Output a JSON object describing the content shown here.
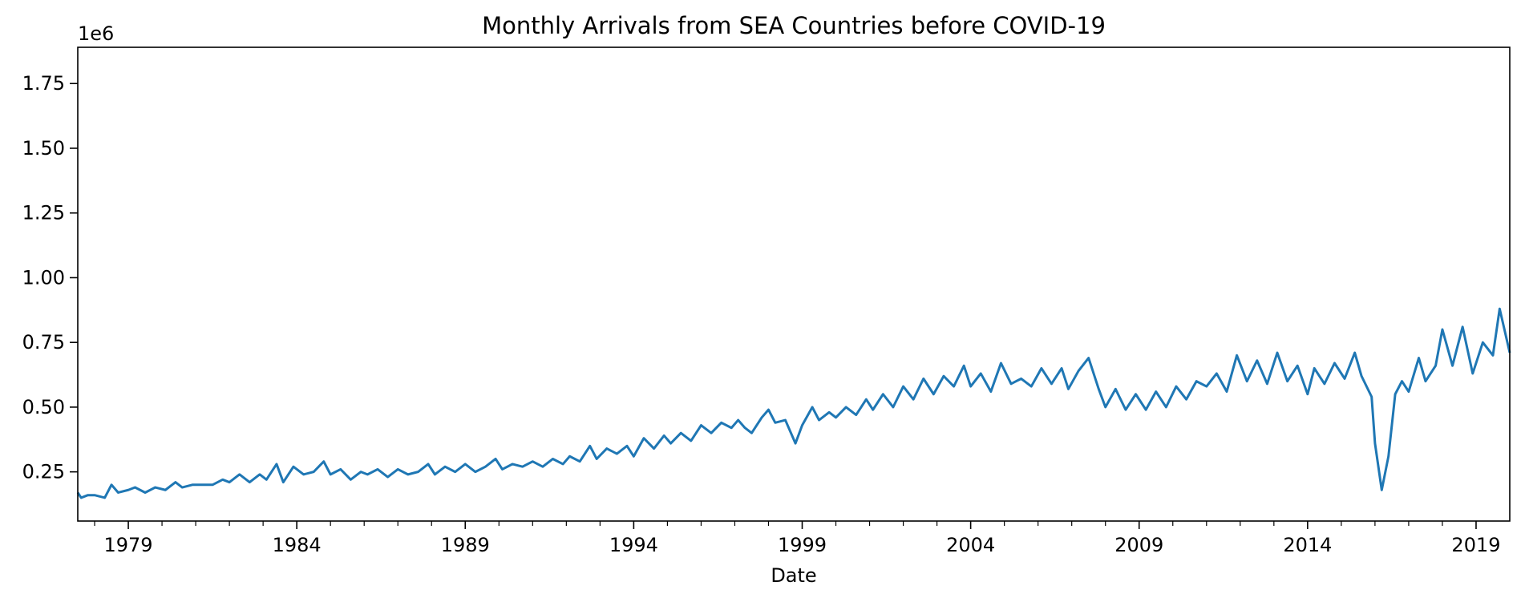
{
  "chart_data": {
    "type": "line",
    "title": "Monthly Arrivals from SEA Countries before COVID-19",
    "xlabel": "Date",
    "ylabel": "",
    "y_offset_label": "1e6",
    "xlim": [
      1977.5,
      2020.0
    ],
    "ylim": [
      0.06,
      1.89
    ],
    "x_ticks": [
      1979,
      1984,
      1989,
      1994,
      1999,
      2004,
      2009,
      2014,
      2019
    ],
    "x_tick_labels": [
      "1979",
      "1984",
      "1989",
      "1994",
      "1999",
      "2004",
      "2009",
      "2014",
      "2019"
    ],
    "y_ticks": [
      0.25,
      0.5,
      0.75,
      1.0,
      1.25,
      1.5,
      1.75
    ],
    "y_tick_labels": [
      "0.25",
      "0.50",
      "0.75",
      "1.00",
      "1.25",
      "1.50",
      "1.75"
    ],
    "color": "#1f77b4",
    "series": [
      {
        "name": "Arrivals",
        "points": [
          [
            1977.5,
            0.17
          ],
          [
            1977.6,
            0.15
          ],
          [
            1977.8,
            0.16
          ],
          [
            1978.0,
            0.16
          ],
          [
            1978.3,
            0.15
          ],
          [
            1978.5,
            0.2
          ],
          [
            1978.7,
            0.17
          ],
          [
            1979.0,
            0.18
          ],
          [
            1979.2,
            0.19
          ],
          [
            1979.5,
            0.17
          ],
          [
            1979.8,
            0.19
          ],
          [
            1980.1,
            0.18
          ],
          [
            1980.4,
            0.21
          ],
          [
            1980.6,
            0.19
          ],
          [
            1980.9,
            0.2
          ],
          [
            1981.2,
            0.2
          ],
          [
            1981.5,
            0.2
          ],
          [
            1981.8,
            0.22
          ],
          [
            1982.0,
            0.21
          ],
          [
            1982.3,
            0.24
          ],
          [
            1982.6,
            0.21
          ],
          [
            1982.9,
            0.24
          ],
          [
            1983.1,
            0.22
          ],
          [
            1983.4,
            0.28
          ],
          [
            1983.6,
            0.21
          ],
          [
            1983.9,
            0.27
          ],
          [
            1984.2,
            0.24
          ],
          [
            1984.5,
            0.25
          ],
          [
            1984.8,
            0.29
          ],
          [
            1985.0,
            0.24
          ],
          [
            1985.3,
            0.26
          ],
          [
            1985.6,
            0.22
          ],
          [
            1985.9,
            0.25
          ],
          [
            1986.1,
            0.24
          ],
          [
            1986.4,
            0.26
          ],
          [
            1986.7,
            0.23
          ],
          [
            1987.0,
            0.26
          ],
          [
            1987.3,
            0.24
          ],
          [
            1987.6,
            0.25
          ],
          [
            1987.9,
            0.28
          ],
          [
            1988.1,
            0.24
          ],
          [
            1988.4,
            0.27
          ],
          [
            1988.7,
            0.25
          ],
          [
            1989.0,
            0.28
          ],
          [
            1989.3,
            0.25
          ],
          [
            1989.6,
            0.27
          ],
          [
            1989.9,
            0.3
          ],
          [
            1990.1,
            0.26
          ],
          [
            1990.4,
            0.28
          ],
          [
            1990.7,
            0.27
          ],
          [
            1991.0,
            0.29
          ],
          [
            1991.3,
            0.27
          ],
          [
            1991.6,
            0.3
          ],
          [
            1991.9,
            0.28
          ],
          [
            1992.1,
            0.31
          ],
          [
            1992.4,
            0.29
          ],
          [
            1992.7,
            0.35
          ],
          [
            1992.9,
            0.3
          ],
          [
            1993.2,
            0.34
          ],
          [
            1993.5,
            0.32
          ],
          [
            1993.8,
            0.35
          ],
          [
            1994.0,
            0.31
          ],
          [
            1994.3,
            0.38
          ],
          [
            1994.6,
            0.34
          ],
          [
            1994.9,
            0.39
          ],
          [
            1995.1,
            0.36
          ],
          [
            1995.4,
            0.4
          ],
          [
            1995.7,
            0.37
          ],
          [
            1996.0,
            0.43
          ],
          [
            1996.3,
            0.4
          ],
          [
            1996.6,
            0.44
          ],
          [
            1996.9,
            0.42
          ],
          [
            1997.1,
            0.45
          ],
          [
            1997.3,
            0.42
          ],
          [
            1997.5,
            0.4
          ],
          [
            1997.8,
            0.46
          ],
          [
            1998.0,
            0.49
          ],
          [
            1998.2,
            0.44
          ],
          [
            1998.5,
            0.45
          ],
          [
            1998.8,
            0.36
          ],
          [
            1999.0,
            0.43
          ],
          [
            1999.3,
            0.5
          ],
          [
            1999.5,
            0.45
          ],
          [
            1999.8,
            0.48
          ],
          [
            2000.0,
            0.46
          ],
          [
            2000.3,
            0.5
          ],
          [
            2000.6,
            0.47
          ],
          [
            2000.9,
            0.53
          ],
          [
            2001.1,
            0.49
          ],
          [
            2001.4,
            0.55
          ],
          [
            2001.7,
            0.5
          ],
          [
            2002.0,
            0.58
          ],
          [
            2002.3,
            0.53
          ],
          [
            2002.6,
            0.61
          ],
          [
            2002.9,
            0.55
          ],
          [
            2003.2,
            0.62
          ],
          [
            2003.5,
            0.58
          ],
          [
            2003.8,
            0.66
          ],
          [
            2004.0,
            0.58
          ],
          [
            2004.3,
            0.63
          ],
          [
            2004.6,
            0.56
          ],
          [
            2004.9,
            0.67
          ],
          [
            2005.2,
            0.59
          ],
          [
            2005.5,
            0.61
          ],
          [
            2005.8,
            0.58
          ],
          [
            2006.1,
            0.65
          ],
          [
            2006.4,
            0.59
          ],
          [
            2006.7,
            0.65
          ],
          [
            2006.9,
            0.57
          ],
          [
            2007.2,
            0.64
          ],
          [
            2007.5,
            0.69
          ],
          [
            2007.8,
            0.57
          ],
          [
            2008.0,
            0.5
          ],
          [
            2008.3,
            0.57
          ],
          [
            2008.6,
            0.49
          ],
          [
            2008.9,
            0.55
          ],
          [
            2009.2,
            0.49
          ],
          [
            2009.5,
            0.56
          ],
          [
            2009.8,
            0.5
          ],
          [
            2010.1,
            0.58
          ],
          [
            2010.4,
            0.53
          ],
          [
            2010.7,
            0.6
          ],
          [
            2011.0,
            0.58
          ],
          [
            2011.3,
            0.63
          ],
          [
            2011.6,
            0.56
          ],
          [
            2011.9,
            0.7
          ],
          [
            2012.2,
            0.6
          ],
          [
            2012.5,
            0.68
          ],
          [
            2012.8,
            0.59
          ],
          [
            2013.1,
            0.71
          ],
          [
            2013.4,
            0.6
          ],
          [
            2013.7,
            0.66
          ],
          [
            2014.0,
            0.55
          ],
          [
            2014.2,
            0.65
          ],
          [
            2014.5,
            0.59
          ],
          [
            2014.8,
            0.67
          ],
          [
            2015.1,
            0.61
          ],
          [
            2015.4,
            0.71
          ],
          [
            2015.6,
            0.62
          ],
          [
            2015.9,
            0.54
          ],
          [
            2016.0,
            0.36
          ],
          [
            2016.2,
            0.18
          ],
          [
            2016.4,
            0.31
          ],
          [
            2016.6,
            0.55
          ],
          [
            2016.8,
            0.6
          ],
          [
            2017.0,
            0.56
          ],
          [
            2017.3,
            0.69
          ],
          [
            2017.5,
            0.6
          ],
          [
            2017.8,
            0.66
          ],
          [
            2018.0,
            0.8
          ],
          [
            2018.3,
            0.66
          ],
          [
            2018.6,
            0.81
          ],
          [
            2018.9,
            0.63
          ],
          [
            2019.2,
            0.75
          ],
          [
            2019.5,
            0.7
          ],
          [
            2019.7,
            0.88
          ],
          [
            2020.0,
            0.71
          ]
        ]
      }
    ]
  }
}
